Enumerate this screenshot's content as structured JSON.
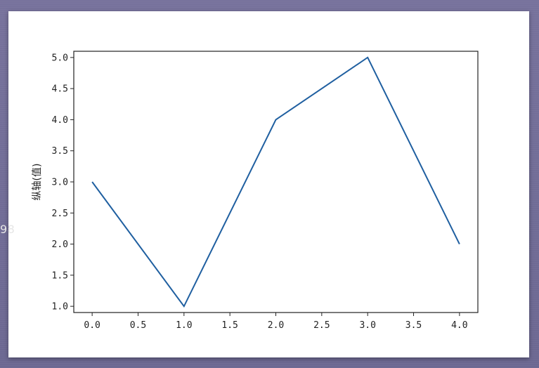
{
  "watermark": "98",
  "chart_data": {
    "type": "line",
    "x": [
      0,
      1,
      2,
      3,
      4
    ],
    "series": [
      {
        "values": [
          3,
          1,
          4,
          5,
          2
        ]
      }
    ],
    "title": "",
    "xlabel": "",
    "ylabel": "纵轴(值)",
    "xlim": [
      -0.2,
      4.2
    ],
    "ylim": [
      0.9,
      5.1
    ],
    "xticks": [
      0.0,
      0.5,
      1.0,
      1.5,
      2.0,
      2.5,
      3.0,
      3.5,
      4.0
    ],
    "yticks": [
      1.0,
      1.5,
      2.0,
      2.5,
      3.0,
      3.5,
      4.0,
      4.5,
      5.0
    ],
    "line_color": "#1f5fa0",
    "grid": false
  }
}
